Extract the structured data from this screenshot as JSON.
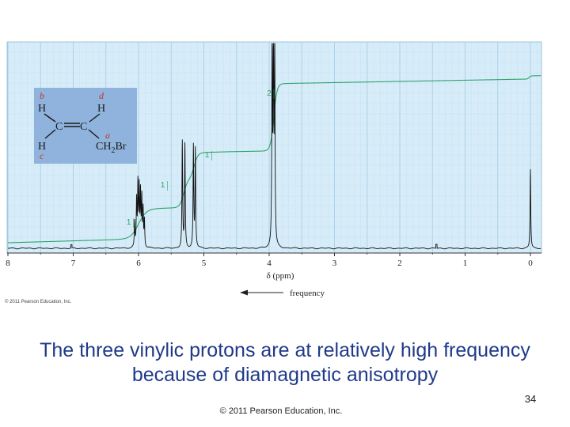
{
  "chart_data": {
    "type": "line",
    "xlabel": "δ (ppm)",
    "x_ticks": [
      "8",
      "7",
      "6",
      "5",
      "4",
      "3",
      "2",
      "1",
      "0"
    ],
    "xlim": [
      8,
      0
    ],
    "x_reversed": true,
    "arrow_label": "frequency",
    "peaks": [
      {
        "ppm": 5.98,
        "label": "1",
        "integral": 1
      },
      {
        "ppm": 5.29,
        "label": "1",
        "integral": 1
      },
      {
        "ppm": 5.14,
        "label": "1",
        "integral": 1
      },
      {
        "ppm": 3.93,
        "label": "2",
        "integral": 2
      },
      {
        "ppm": 0.0,
        "label": "",
        "integral": 0
      }
    ],
    "colors": {
      "background": "#d6ecf8",
      "grid": "#a9cfe6",
      "integral": "#2ea36b",
      "spectrum": "#111111"
    }
  },
  "molecule": {
    "labels": {
      "b": "b",
      "d": "d",
      "a": "a",
      "c": "c"
    },
    "H": "H",
    "C": "C",
    "ch2br_ch": "CH",
    "ch2br_sub": "2",
    "ch2br_br": "Br",
    "colors": {
      "box": "#8fb3dc",
      "label": "#c0392b"
    }
  },
  "figure_copyright": "© 2011 Pearson Education, Inc.",
  "caption": {
    "line1": "The three vinylic protons are at relatively high frequency",
    "line2": "because of diamagnetic anisotropy"
  },
  "slide_number": "34",
  "footer_copyright": "© 2011 Pearson Education, Inc."
}
